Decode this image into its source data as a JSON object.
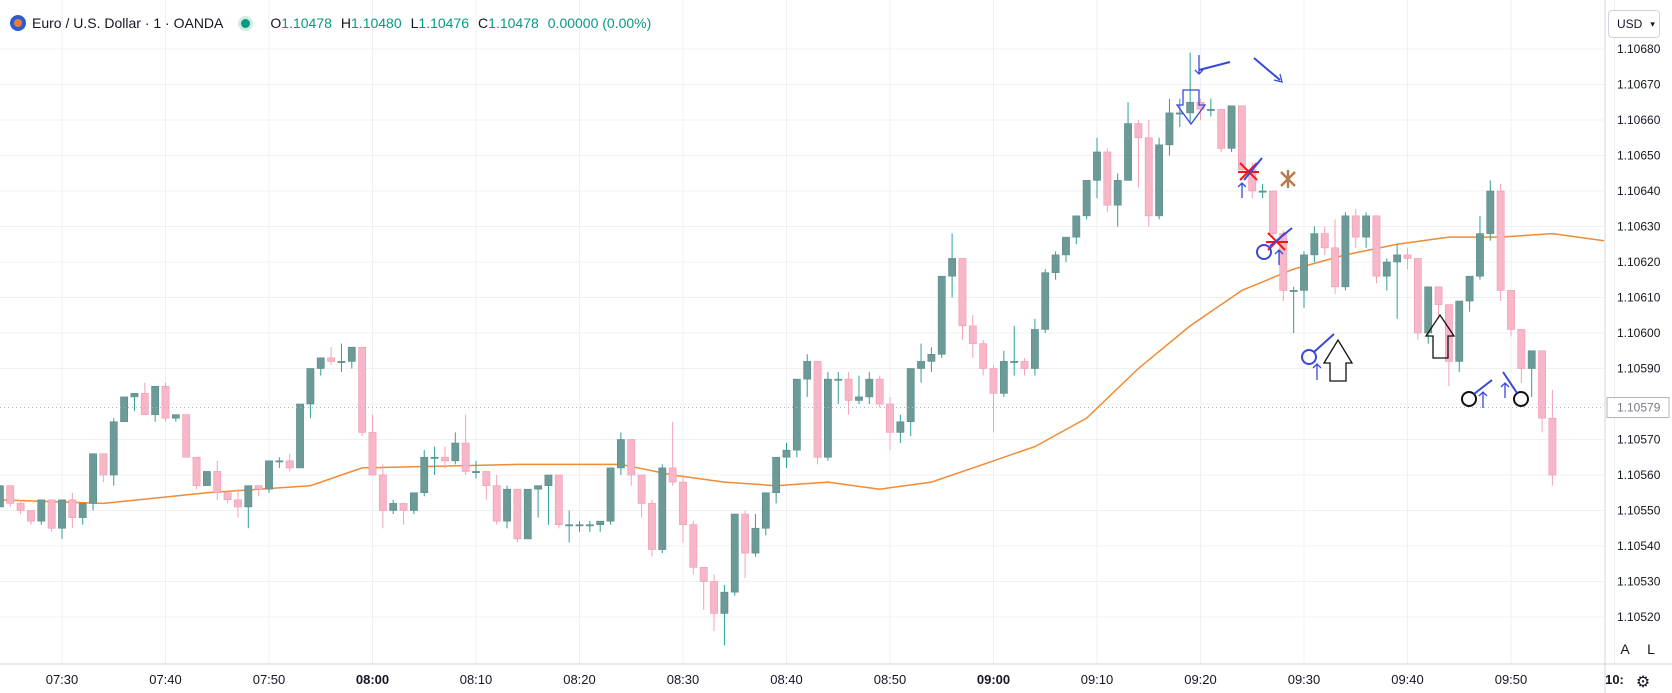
{
  "legend": {
    "symbol": "Euro / U.S. Dollar · 1 · OANDA",
    "o_label": "O",
    "o_value": "1.10478",
    "h_label": "H",
    "h_value": "1.10480",
    "l_label": "L",
    "l_value": "1.10476",
    "c_label": "C",
    "c_value": "1.10478",
    "change": "0.00000 (0.00%)"
  },
  "currency_button": {
    "label": "USD"
  },
  "scale_buttons": {
    "auto": "A",
    "log": "L"
  },
  "colors": {
    "up": "#6b9a97",
    "down": "#f7b7c8",
    "ma": "#f28b33",
    "grid": "#eef0f4",
    "annotation_blue": "#3849d8",
    "annotation_red": "#f21616",
    "annotation_brown": "#b87a4b",
    "annotation_black": "#111111"
  },
  "chart_data": {
    "type": "candlestick",
    "interval": "1 minute",
    "ylim": [
      1.10505,
      1.1069
    ],
    "price_ticks": [
      "1.10680",
      "1.10670",
      "1.10660",
      "1.10650",
      "1.10640",
      "1.10630",
      "1.10620",
      "1.10610",
      "1.10600",
      "1.10590",
      "1.10580",
      "1.10570",
      "1.10560",
      "1.10550",
      "1.10540",
      "1.10530",
      "1.10520"
    ],
    "time_ticks": [
      {
        "label": "07:30",
        "bold": false
      },
      {
        "label": "07:40",
        "bold": false
      },
      {
        "label": "07:50",
        "bold": false
      },
      {
        "label": "08:00",
        "bold": true
      },
      {
        "label": "08:10",
        "bold": false
      },
      {
        "label": "08:20",
        "bold": false
      },
      {
        "label": "08:30",
        "bold": false
      },
      {
        "label": "08:40",
        "bold": false
      },
      {
        "label": "08:50",
        "bold": false
      },
      {
        "label": "09:00",
        "bold": true
      },
      {
        "label": "09:10",
        "bold": false
      },
      {
        "label": "09:20",
        "bold": false
      },
      {
        "label": "09:30",
        "bold": false
      },
      {
        "label": "09:40",
        "bold": false
      },
      {
        "label": "09:50",
        "bold": false
      },
      {
        "label": "10:",
        "bold": true
      }
    ],
    "start_time": "07:24",
    "current_price_label": "1.10579",
    "ohlc": [
      [
        1.10551,
        1.10557,
        1.10551,
        1.10557
      ],
      [
        1.10557,
        1.10557,
        1.10551,
        1.10552
      ],
      [
        1.10552,
        1.10553,
        1.10549,
        1.1055
      ],
      [
        1.1055,
        1.1055,
        1.10546,
        1.10547
      ],
      [
        1.10547,
        1.10553,
        1.10546,
        1.10553
      ],
      [
        1.10553,
        1.10553,
        1.10544,
        1.10545
      ],
      [
        1.10545,
        1.10553,
        1.10542,
        1.10553
      ],
      [
        1.10553,
        1.10555,
        1.10545,
        1.10548
      ],
      [
        1.10548,
        1.10552,
        1.10546,
        1.10552
      ],
      [
        1.10552,
        1.10566,
        1.1055,
        1.10566
      ],
      [
        1.10566,
        1.10566,
        1.10558,
        1.1056
      ],
      [
        1.1056,
        1.10576,
        1.10557,
        1.10575
      ],
      [
        1.10575,
        1.10582,
        1.10575,
        1.10582
      ],
      [
        1.10582,
        1.10583,
        1.10578,
        1.10583
      ],
      [
        1.10583,
        1.10586,
        1.10577,
        1.10577
      ],
      [
        1.10577,
        1.10585,
        1.10575,
        1.10585
      ],
      [
        1.10585,
        1.10586,
        1.10575,
        1.10576
      ],
      [
        1.10576,
        1.10577,
        1.10575,
        1.10577
      ],
      [
        1.10577,
        1.10577,
        1.10565,
        1.10565
      ],
      [
        1.10565,
        1.10565,
        1.10556,
        1.10557
      ],
      [
        1.10557,
        1.10561,
        1.10557,
        1.10561
      ],
      [
        1.10561,
        1.10564,
        1.10553,
        1.10555
      ],
      [
        1.10555,
        1.10555,
        1.10552,
        1.10553
      ],
      [
        1.10553,
        1.10556,
        1.10548,
        1.10551
      ],
      [
        1.10551,
        1.10557,
        1.10545,
        1.10557
      ],
      [
        1.10557,
        1.10557,
        1.10554,
        1.10556
      ],
      [
        1.10556,
        1.10564,
        1.10555,
        1.10564
      ],
      [
        1.10564,
        1.10565,
        1.10562,
        1.10564
      ],
      [
        1.10564,
        1.10566,
        1.10561,
        1.10562
      ],
      [
        1.10562,
        1.1058,
        1.10562,
        1.1058
      ],
      [
        1.1058,
        1.1059,
        1.10576,
        1.1059
      ],
      [
        1.1059,
        1.10593,
        1.10588,
        1.10593
      ],
      [
        1.10593,
        1.10596,
        1.10591,
        1.10592
      ],
      [
        1.10592,
        1.10597,
        1.10589,
        1.10592
      ],
      [
        1.10592,
        1.10596,
        1.1059,
        1.10596
      ],
      [
        1.10596,
        1.10596,
        1.10571,
        1.10572
      ],
      [
        1.10572,
        1.10577,
        1.1056,
        1.1056
      ],
      [
        1.1056,
        1.10563,
        1.10545,
        1.1055
      ],
      [
        1.1055,
        1.10553,
        1.10549,
        1.10552
      ],
      [
        1.10552,
        1.10552,
        1.10546,
        1.1055
      ],
      [
        1.1055,
        1.10555,
        1.10549,
        1.10555
      ],
      [
        1.10555,
        1.10567,
        1.10554,
        1.10565
      ],
      [
        1.10565,
        1.10568,
        1.1056,
        1.10565
      ],
      [
        1.10565,
        1.10568,
        1.10562,
        1.10564
      ],
      [
        1.10564,
        1.10572,
        1.10563,
        1.10569
      ],
      [
        1.10569,
        1.10577,
        1.1056,
        1.10561
      ],
      [
        1.10561,
        1.10564,
        1.10559,
        1.10561
      ],
      [
        1.10561,
        1.10561,
        1.10553,
        1.10557
      ],
      [
        1.10557,
        1.1056,
        1.10546,
        1.10547
      ],
      [
        1.10547,
        1.10557,
        1.10545,
        1.10556
      ],
      [
        1.10556,
        1.10556,
        1.10541,
        1.10542
      ],
      [
        1.10542,
        1.10556,
        1.10542,
        1.10556
      ],
      [
        1.10556,
        1.10557,
        1.10548,
        1.10557
      ],
      [
        1.10557,
        1.10559,
        1.10546,
        1.1056
      ],
      [
        1.1056,
        1.1056,
        1.10545,
        1.10546
      ],
      [
        1.10546,
        1.1055,
        1.10541,
        1.10546
      ],
      [
        1.10546,
        1.10547,
        1.10544,
        1.10546
      ],
      [
        1.10546,
        1.10547,
        1.10544,
        1.10546
      ],
      [
        1.10546,
        1.10547,
        1.10544,
        1.10547
      ],
      [
        1.10547,
        1.10562,
        1.10546,
        1.10562
      ],
      [
        1.10562,
        1.10572,
        1.1056,
        1.1057
      ],
      [
        1.1057,
        1.1057,
        1.10557,
        1.1056
      ],
      [
        1.1056,
        1.1056,
        1.10548,
        1.10552
      ],
      [
        1.10552,
        1.10553,
        1.10537,
        1.10539
      ],
      [
        1.10539,
        1.10563,
        1.10538,
        1.10562
      ],
      [
        1.10562,
        1.10575,
        1.10557,
        1.10558
      ],
      [
        1.10558,
        1.1056,
        1.10541,
        1.10546
      ],
      [
        1.10546,
        1.10547,
        1.10532,
        1.10534
      ],
      [
        1.10534,
        1.10534,
        1.10522,
        1.1053
      ],
      [
        1.1053,
        1.10532,
        1.10516,
        1.10521
      ],
      [
        1.10521,
        1.10529,
        1.10512,
        1.10527
      ],
      [
        1.10527,
        1.10549,
        1.10526,
        1.10549
      ],
      [
        1.10549,
        1.1055,
        1.10531,
        1.10538
      ],
      [
        1.10538,
        1.10549,
        1.10537,
        1.10545
      ],
      [
        1.10545,
        1.10555,
        1.10543,
        1.10555
      ],
      [
        1.10555,
        1.10565,
        1.10552,
        1.10565
      ],
      [
        1.10565,
        1.10569,
        1.10562,
        1.10567
      ],
      [
        1.10567,
        1.10587,
        1.10565,
        1.10587
      ],
      [
        1.10587,
        1.10594,
        1.10582,
        1.10592
      ],
      [
        1.10592,
        1.10592,
        1.10563,
        1.10565
      ],
      [
        1.10565,
        1.10589,
        1.10564,
        1.10587
      ],
      [
        1.10587,
        1.10589,
        1.1058,
        1.10587
      ],
      [
        1.10587,
        1.10589,
        1.10577,
        1.10581
      ],
      [
        1.10581,
        1.10588,
        1.1058,
        1.10582
      ],
      [
        1.10582,
        1.10589,
        1.1058,
        1.10587
      ],
      [
        1.10587,
        1.10588,
        1.10579,
        1.1058
      ],
      [
        1.1058,
        1.10582,
        1.10567,
        1.10572
      ],
      [
        1.10572,
        1.10577,
        1.10569,
        1.10575
      ],
      [
        1.10575,
        1.1059,
        1.10571,
        1.1059
      ],
      [
        1.1059,
        1.10597,
        1.10586,
        1.10592
      ],
      [
        1.10592,
        1.10596,
        1.10589,
        1.10594
      ],
      [
        1.10594,
        1.10616,
        1.10593,
        1.10616
      ],
      [
        1.10616,
        1.10628,
        1.1061,
        1.10621
      ],
      [
        1.10621,
        1.10621,
        1.10598,
        1.10602
      ],
      [
        1.10602,
        1.10605,
        1.10593,
        1.10597
      ],
      [
        1.10597,
        1.10598,
        1.10588,
        1.1059
      ],
      [
        1.1059,
        1.10591,
        1.10572,
        1.10583
      ],
      [
        1.10583,
        1.10595,
        1.10582,
        1.10592
      ],
      [
        1.10592,
        1.10602,
        1.10588,
        1.10592
      ],
      [
        1.10592,
        1.10593,
        1.10588,
        1.1059
      ],
      [
        1.1059,
        1.10604,
        1.10588,
        1.10601
      ],
      [
        1.10601,
        1.10618,
        1.106,
        1.10617
      ],
      [
        1.10617,
        1.10623,
        1.10615,
        1.10622
      ],
      [
        1.10622,
        1.10627,
        1.1062,
        1.10627
      ],
      [
        1.10627,
        1.10633,
        1.10625,
        1.10633
      ],
      [
        1.10633,
        1.10643,
        1.10632,
        1.10643
      ],
      [
        1.10643,
        1.10655,
        1.10638,
        1.10651
      ],
      [
        1.10651,
        1.10652,
        1.10634,
        1.10636
      ],
      [
        1.10636,
        1.10645,
        1.1063,
        1.10643
      ],
      [
        1.10643,
        1.10665,
        1.10643,
        1.10659
      ],
      [
        1.10659,
        1.1066,
        1.10641,
        1.10655
      ],
      [
        1.10655,
        1.1066,
        1.1063,
        1.10633
      ],
      [
        1.10633,
        1.10655,
        1.10632,
        1.10653
      ],
      [
        1.10653,
        1.10666,
        1.1065,
        1.10662
      ],
      [
        1.10662,
        1.10666,
        1.10658,
        1.10662
      ],
      [
        1.10662,
        1.10679,
        1.10659,
        1.10665
      ],
      [
        1.10665,
        1.10666,
        1.1066,
        1.10663
      ],
      [
        1.10663,
        1.10666,
        1.10661,
        1.10663
      ],
      [
        1.10663,
        1.10663,
        1.10651,
        1.10652
      ],
      [
        1.10652,
        1.10664,
        1.10651,
        1.10664
      ],
      [
        1.10664,
        1.10664,
        1.10645,
        1.10646
      ],
      [
        1.10646,
        1.10648,
        1.10638,
        1.1064
      ],
      [
        1.1064,
        1.10642,
        1.10638,
        1.1064
      ],
      [
        1.1064,
        1.1064,
        1.10627,
        1.10628
      ],
      [
        1.10628,
        1.10629,
        1.10609,
        1.10612
      ],
      [
        1.10612,
        1.10613,
        1.106,
        1.10612
      ],
      [
        1.10612,
        1.10623,
        1.10607,
        1.10622
      ],
      [
        1.10622,
        1.1063,
        1.1062,
        1.10628
      ],
      [
        1.10628,
        1.1063,
        1.10622,
        1.10624
      ],
      [
        1.10624,
        1.10632,
        1.10611,
        1.10613
      ],
      [
        1.10613,
        1.10634,
        1.10612,
        1.10633
      ],
      [
        1.10633,
        1.10635,
        1.10624,
        1.10627
      ],
      [
        1.10627,
        1.10634,
        1.10624,
        1.10633
      ],
      [
        1.10633,
        1.10633,
        1.10614,
        1.10616
      ],
      [
        1.10616,
        1.10621,
        1.10612,
        1.1062
      ],
      [
        1.1062,
        1.10625,
        1.10604,
        1.10622
      ],
      [
        1.10622,
        1.10624,
        1.10618,
        1.10621
      ],
      [
        1.10621,
        1.10621,
        1.10598,
        1.106
      ],
      [
        1.106,
        1.10613,
        1.10597,
        1.10613
      ],
      [
        1.10613,
        1.10613,
        1.10604,
        1.10608
      ],
      [
        1.10608,
        1.10608,
        1.10585,
        1.10592
      ],
      [
        1.10592,
        1.10609,
        1.10589,
        1.10609
      ],
      [
        1.10609,
        1.10616,
        1.10606,
        1.10616
      ],
      [
        1.10616,
        1.10633,
        1.10615,
        1.10628
      ],
      [
        1.10628,
        1.10643,
        1.10626,
        1.1064
      ],
      [
        1.1064,
        1.10642,
        1.10609,
        1.10612
      ],
      [
        1.10612,
        1.10612,
        1.10599,
        1.10601
      ],
      [
        1.10601,
        1.10601,
        1.10586,
        1.1059
      ],
      [
        1.1059,
        1.10595,
        1.10582,
        1.10595
      ],
      [
        1.10595,
        1.10595,
        1.10572,
        1.10576
      ],
      [
        1.10576,
        1.10584,
        1.10557,
        1.1056
      ]
    ],
    "moving_average": [
      [
        0,
        1.10553
      ],
      [
        10,
        1.10552
      ],
      [
        20,
        1.10555
      ],
      [
        30,
        1.10557
      ],
      [
        35,
        1.10562
      ],
      [
        50,
        1.10563
      ],
      [
        60,
        1.10563
      ],
      [
        65,
        1.1056
      ],
      [
        70,
        1.10558
      ],
      [
        75,
        1.10557
      ],
      [
        80,
        1.10558
      ],
      [
        85,
        1.10556
      ],
      [
        90,
        1.10558
      ],
      [
        95,
        1.10563
      ],
      [
        100,
        1.10568
      ],
      [
        105,
        1.10576
      ],
      [
        110,
        1.1059
      ],
      [
        115,
        1.10602
      ],
      [
        120,
        1.10612
      ],
      [
        125,
        1.10618
      ],
      [
        130,
        1.10622
      ],
      [
        135,
        1.10625
      ],
      [
        140,
        1.10627
      ],
      [
        145,
        1.10627
      ],
      [
        150,
        1.10628
      ],
      [
        155,
        1.10626
      ]
    ]
  }
}
